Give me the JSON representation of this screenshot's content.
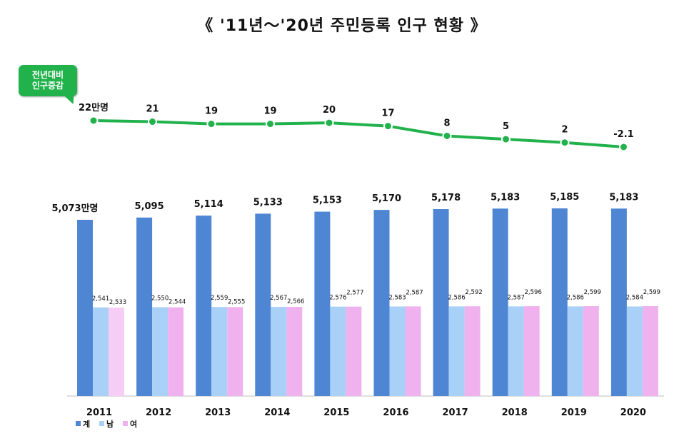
{
  "title": "《 '11년～'20년 주민등록 인구 현황 》",
  "badge": {
    "line1": "전년대비",
    "line2": "인구증감"
  },
  "colors": {
    "line": "#22b24c",
    "total": "#4f86d4",
    "male": "#a9d0f7",
    "female": "#efb2ef",
    "female_2011": "#f6cdf4"
  },
  "chart_data": {
    "type": "bar",
    "categories": [
      "2011",
      "2012",
      "2013",
      "2014",
      "2015",
      "2016",
      "2017",
      "2018",
      "2019",
      "2020"
    ],
    "series": [
      {
        "name": "계",
        "values": [
          5073,
          5095,
          5114,
          5133,
          5153,
          5170,
          5178,
          5183,
          5185,
          5183
        ],
        "labels": [
          "5,073만명",
          "5,095",
          "5,114",
          "5,133",
          "5,153",
          "5,170",
          "5,178",
          "5,183",
          "5,185",
          "5,183"
        ]
      },
      {
        "name": "남",
        "values": [
          2541,
          2550,
          2559,
          2567,
          2576,
          2583,
          2586,
          2587,
          2586,
          2584
        ],
        "labels": [
          "2,541",
          "2,550",
          "2,559",
          "2,567",
          "2,576",
          "2,583",
          "2,586",
          "2,587",
          "2,586",
          "2,584"
        ]
      },
      {
        "name": "여",
        "values": [
          2533,
          2544,
          2555,
          2566,
          2577,
          2587,
          2592,
          2596,
          2599,
          2599
        ],
        "labels": [
          "2,533",
          "2,544",
          "2,555",
          "2,566",
          "2,577",
          "2,587",
          "2,592",
          "2,596",
          "2,599",
          "2,599"
        ]
      }
    ],
    "line_series": {
      "values": [
        22,
        21,
        19,
        19,
        20,
        17,
        8,
        5,
        2,
        -2.1
      ],
      "labels": [
        "22만명",
        "21",
        "19",
        "19",
        "20",
        "17",
        "8",
        "5",
        "2",
        "-2.1"
      ]
    },
    "legend_position": "bottom-left",
    "grid": false
  }
}
